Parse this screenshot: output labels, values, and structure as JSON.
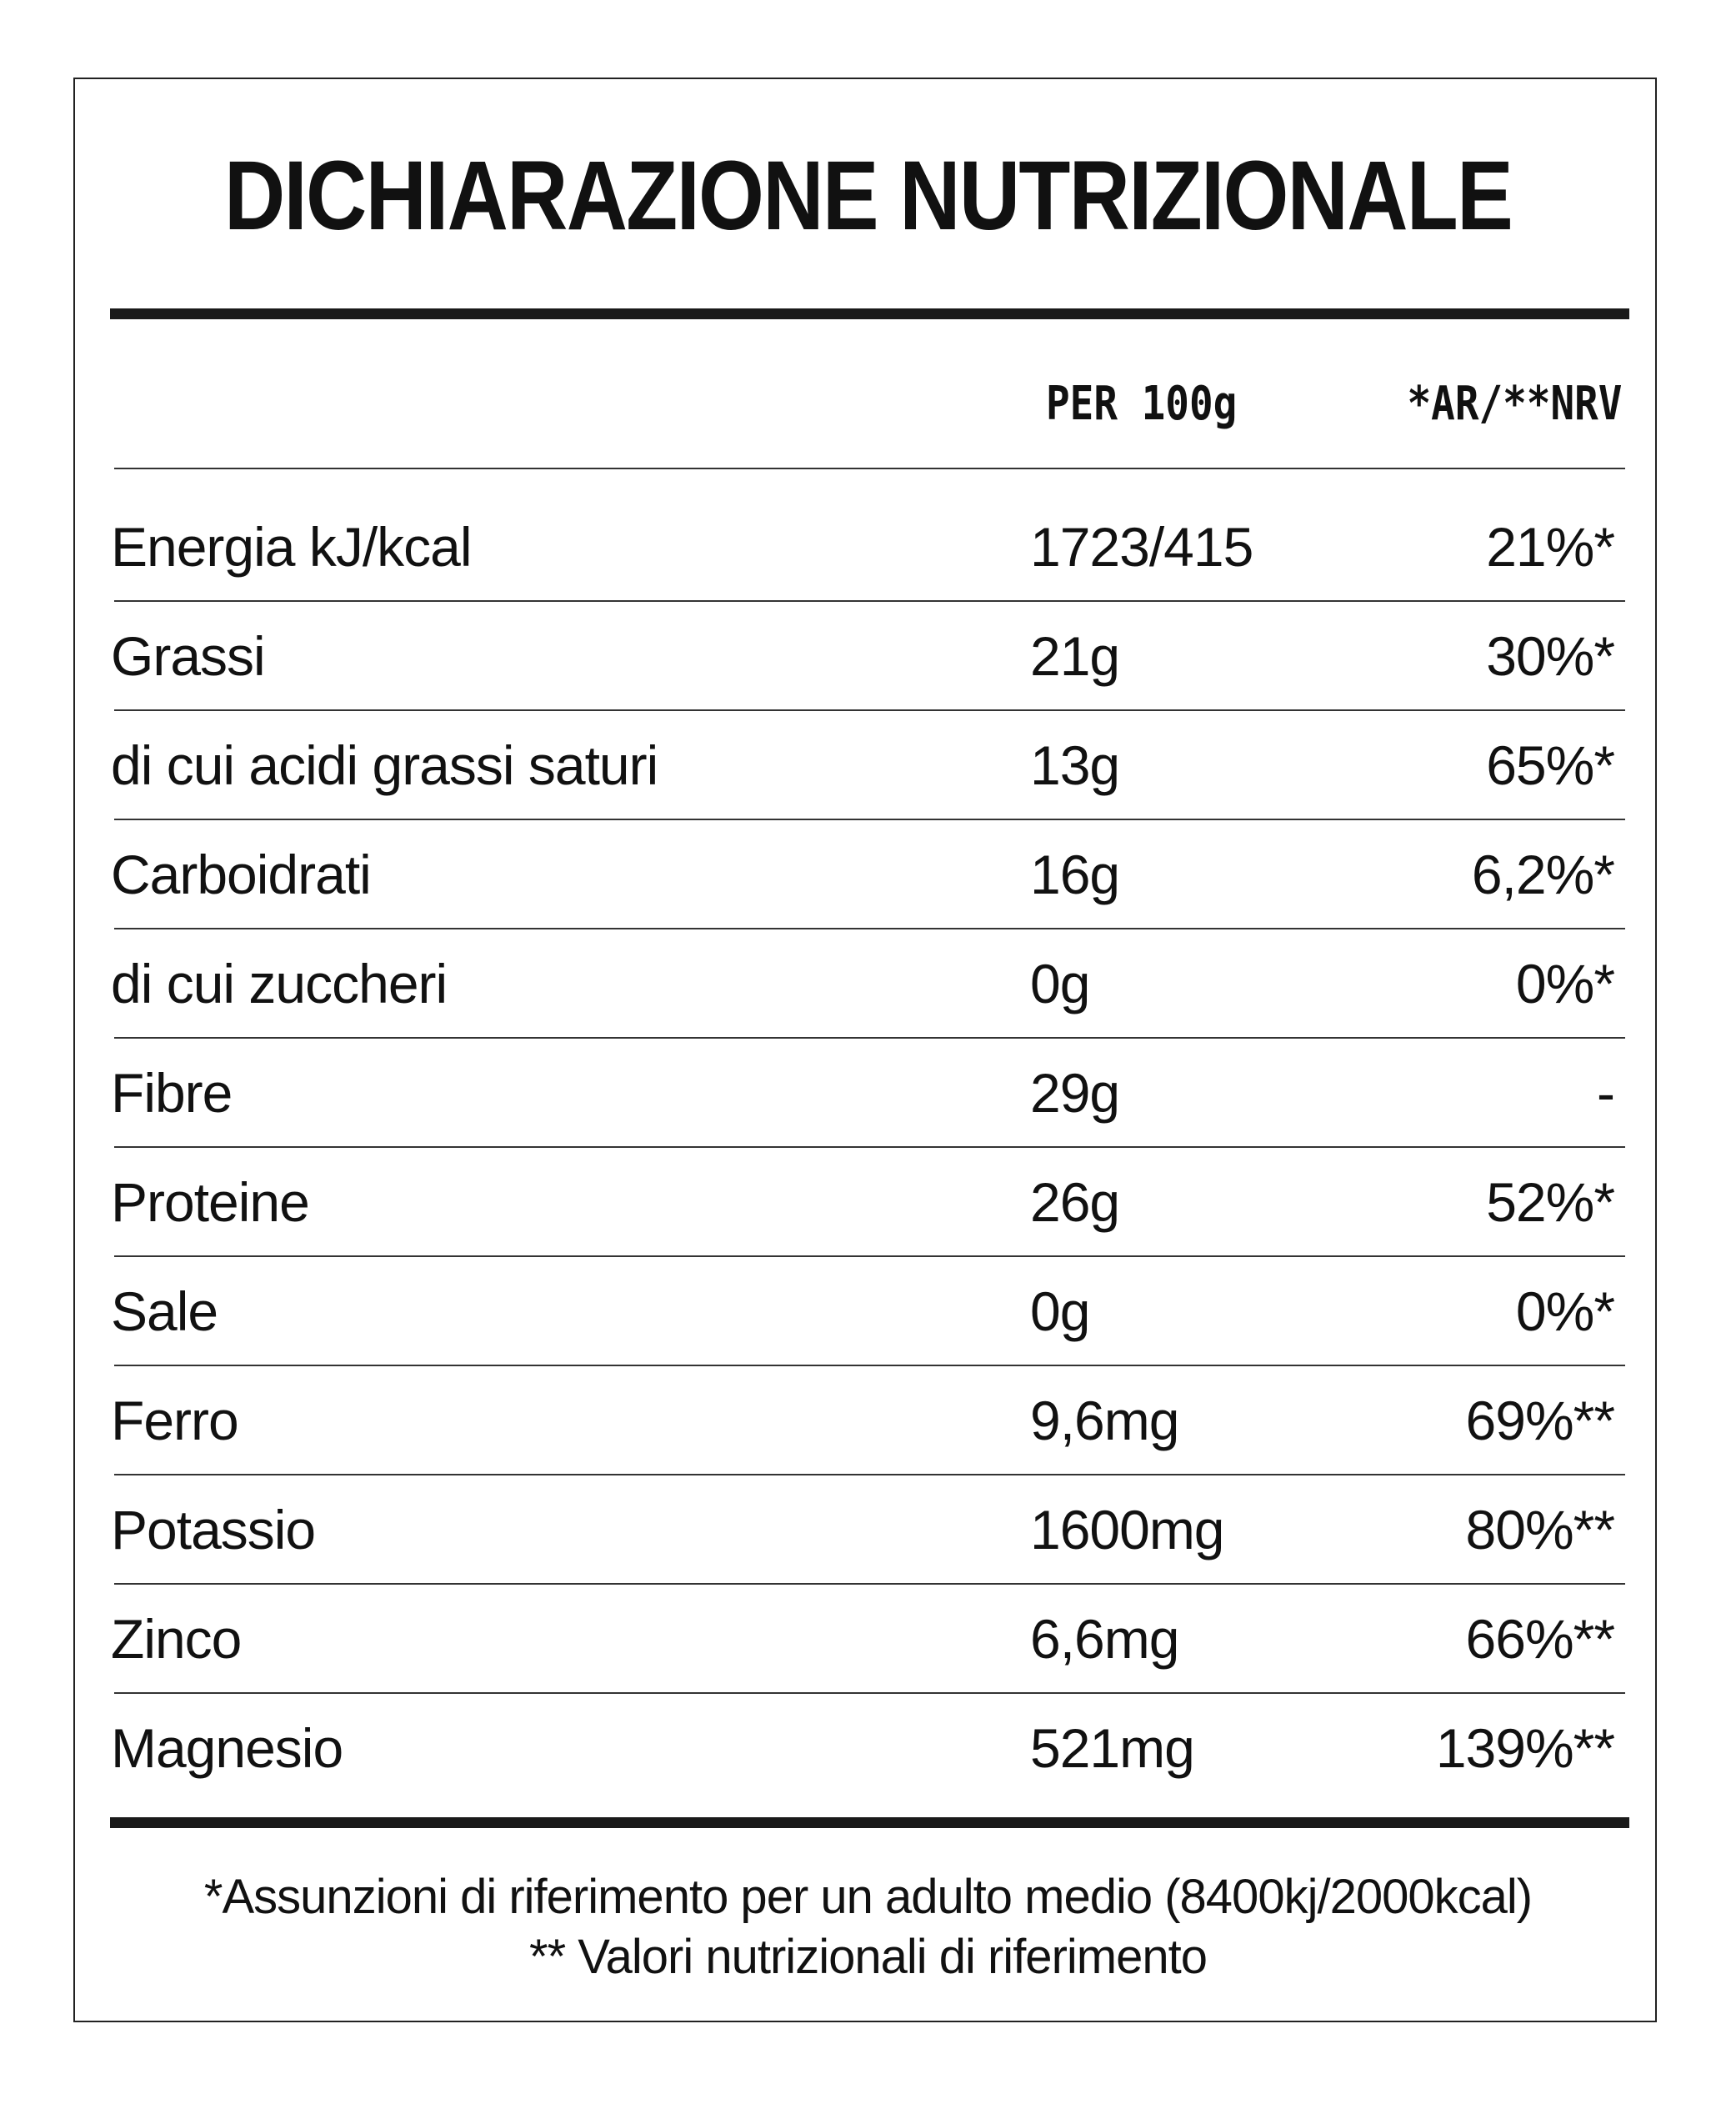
{
  "title": "DICHIARAZIONE NUTRIZIONALE",
  "columns": {
    "per100": "PER 100g",
    "ar": "*AR/**NRV"
  },
  "rows": [
    {
      "label": "Energia kJ/kcal",
      "value": "1723/415",
      "pct": "21%*"
    },
    {
      "label": "Grassi",
      "value": "21g",
      "pct": "30%*"
    },
    {
      "label": "di cui acidi grassi saturi",
      "value": "13g",
      "pct": "65%*"
    },
    {
      "label": "Carboidrati",
      "value": "16g",
      "pct": "6,2%*"
    },
    {
      "label": "di cui zuccheri",
      "value": "0g",
      "pct": "0%*"
    },
    {
      "label": "Fibre",
      "value": "29g",
      "pct": "-"
    },
    {
      "label": "Proteine",
      "value": "26g",
      "pct": "52%*"
    },
    {
      "label": "Sale",
      "value": "0g",
      "pct": "0%*"
    },
    {
      "label": "Ferro",
      "value": "9,6mg",
      "pct": "69%**"
    },
    {
      "label": "Potassio",
      "value": "1600mg",
      "pct": "80%**"
    },
    {
      "label": "Zinco",
      "value": "6,6mg",
      "pct": "66%**"
    },
    {
      "label": "Magnesio",
      "value": "521mg",
      "pct": "139%**"
    }
  ],
  "footnotes": [
    "*Assunzioni di riferimento per un adulto medio (8400kj/2000kcal)",
    "** Valori nutrizionali di riferimento"
  ]
}
